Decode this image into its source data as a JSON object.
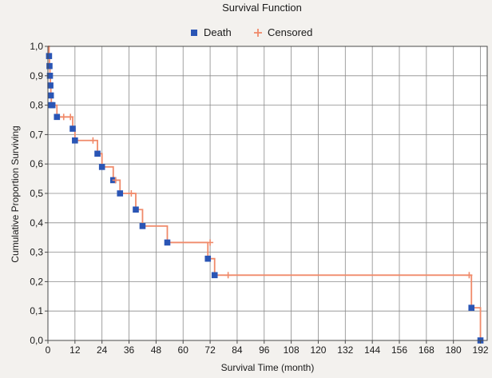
{
  "chart_data": {
    "type": "line",
    "title": "Survival Function",
    "xlabel": "Survival Time (month)",
    "ylabel": "Cumulative Proportion Surviving",
    "xlim": [
      0,
      195
    ],
    "ylim": [
      0,
      1
    ],
    "x_ticks": [
      0,
      12,
      24,
      36,
      48,
      60,
      72,
      84,
      96,
      108,
      120,
      132,
      144,
      156,
      168,
      180,
      192
    ],
    "y_ticks": [
      0,
      0.1,
      0.2,
      0.3,
      0.4,
      0.5,
      0.6,
      0.7,
      0.8,
      0.9,
      1.0
    ],
    "x_tick_labels": [
      "0",
      "12",
      "24",
      "36",
      "48",
      "60",
      "72",
      "84",
      "96",
      "108",
      "120",
      "132",
      "144",
      "156",
      "168",
      "180",
      "192"
    ],
    "y_tick_labels": [
      "0,0",
      "0,1",
      "0,2",
      "0,3",
      "0,4",
      "0,5",
      "0,6",
      "0,7",
      "0,8",
      "0,9",
      "1,0"
    ],
    "grid": true,
    "legend_position": "top-center",
    "colors": {
      "curve": "#f08a6a",
      "death": "#2a55b5",
      "censored": "#f08a6a",
      "grid": "#8a8a8a",
      "frame": "#4a4a4a",
      "plot_bg": "#ffffff",
      "page_bg": "#f3f1ee"
    },
    "series": [
      {
        "name": "Death",
        "marker": "square",
        "x": [
          0.5,
          0.7,
          0.9,
          1.1,
          1.3,
          1.5,
          2.0,
          4.0,
          11.0,
          12.0,
          22.0,
          24.0,
          29.0,
          32.0,
          39.0,
          42.0,
          53.0,
          71.0,
          74.0,
          188.0,
          192.0
        ],
        "y": [
          0.967,
          0.933,
          0.9,
          0.867,
          0.833,
          0.8,
          0.8,
          0.76,
          0.72,
          0.68,
          0.635,
          0.59,
          0.545,
          0.5,
          0.445,
          0.389,
          0.333,
          0.278,
          0.222,
          0.111,
          0.0
        ]
      },
      {
        "name": "Censored",
        "marker": "plus",
        "x": [
          7.0,
          10.0,
          20.0,
          30.0,
          37.0,
          72.0,
          80.0,
          187.0
        ],
        "y": [
          0.76,
          0.76,
          0.68,
          0.545,
          0.5,
          0.333,
          0.222,
          0.222
        ]
      }
    ],
    "survival_curve": {
      "x": [
        0,
        0.5,
        0.7,
        0.9,
        1.1,
        1.3,
        1.5,
        4.0,
        11.0,
        12.0,
        22.0,
        24.0,
        29.0,
        32.0,
        39.0,
        42.0,
        53.0,
        71.0,
        74.0,
        188.0,
        192.0
      ],
      "y": [
        1.0,
        0.967,
        0.933,
        0.9,
        0.867,
        0.833,
        0.8,
        0.76,
        0.72,
        0.68,
        0.635,
        0.59,
        0.545,
        0.5,
        0.445,
        0.389,
        0.333,
        0.278,
        0.222,
        0.111,
        0.0
      ]
    }
  }
}
